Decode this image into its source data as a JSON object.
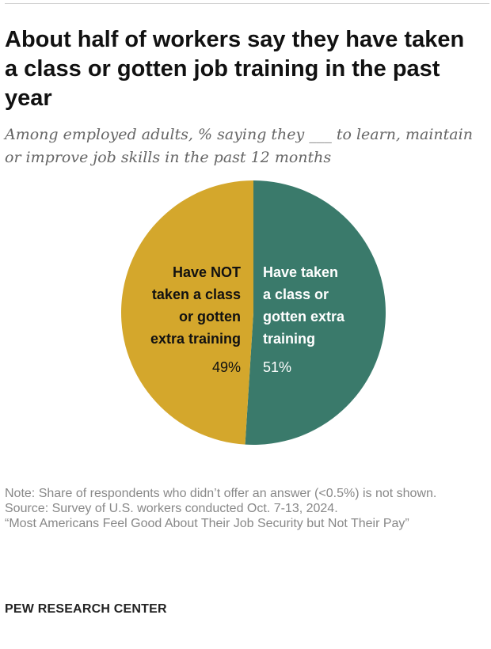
{
  "title": "About half of workers say they have taken a class or gotten job training in the past year",
  "subtitle": "Among employed adults, % saying they ___ to learn, maintain or improve job skills in the past 12 months",
  "chart_data": {
    "type": "pie",
    "slices": [
      {
        "label_lines": [
          "Have taken",
          "a class or",
          "gotten extra",
          "training"
        ],
        "value": 51,
        "value_label": "51%",
        "color": "#3a7a6b",
        "text_color": "#ffffff"
      },
      {
        "label_lines": [
          "Have NOT",
          "taken a class",
          "or gotten",
          "extra training"
        ],
        "value": 49,
        "value_label": "49%",
        "color": "#d4a72c",
        "text_color": "#111111"
      }
    ]
  },
  "notes": {
    "note": "Note: Share of respondents who didn’t offer an answer (<0.5%) is not shown.",
    "source": "Source: Survey of U.S. workers conducted Oct. 7-13, 2024.",
    "report": "“Most Americans Feel Good About Their Job Security but Not Their Pay”"
  },
  "brand": "PEW RESEARCH CENTER"
}
